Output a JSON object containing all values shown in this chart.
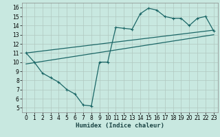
{
  "title": "",
  "xlabel": "Humidex (Indice chaleur)",
  "ylabel": "",
  "background_color": "#c8e8e0",
  "grid_color": "#b0c8c0",
  "line_color": "#1a6666",
  "xlim": [
    -0.5,
    23.5
  ],
  "ylim": [
    4.5,
    16.5
  ],
  "xticks": [
    0,
    1,
    2,
    3,
    4,
    5,
    6,
    7,
    8,
    9,
    10,
    11,
    12,
    13,
    14,
    15,
    16,
    17,
    18,
    19,
    20,
    21,
    22,
    23
  ],
  "yticks": [
    5,
    6,
    7,
    8,
    9,
    10,
    11,
    12,
    13,
    14,
    15,
    16
  ],
  "line1_x": [
    0,
    1,
    2,
    3,
    4,
    5,
    6,
    7,
    8,
    9,
    10,
    11,
    12,
    13,
    14,
    15,
    16,
    17,
    18,
    19,
    20,
    21,
    22,
    23
  ],
  "line1_y": [
    11,
    10,
    8.8,
    8.3,
    7.8,
    7.0,
    6.5,
    5.3,
    5.2,
    10.0,
    10.0,
    13.8,
    13.7,
    13.6,
    15.3,
    15.9,
    15.7,
    15.0,
    14.8,
    14.8,
    14.0,
    14.8,
    15.0,
    13.4
  ],
  "line2_x": [
    0,
    23
  ],
  "line2_y": [
    11.0,
    13.5
  ],
  "line3_x": [
    0,
    23
  ],
  "line3_y": [
    9.8,
    13.0
  ],
  "marker": "+"
}
